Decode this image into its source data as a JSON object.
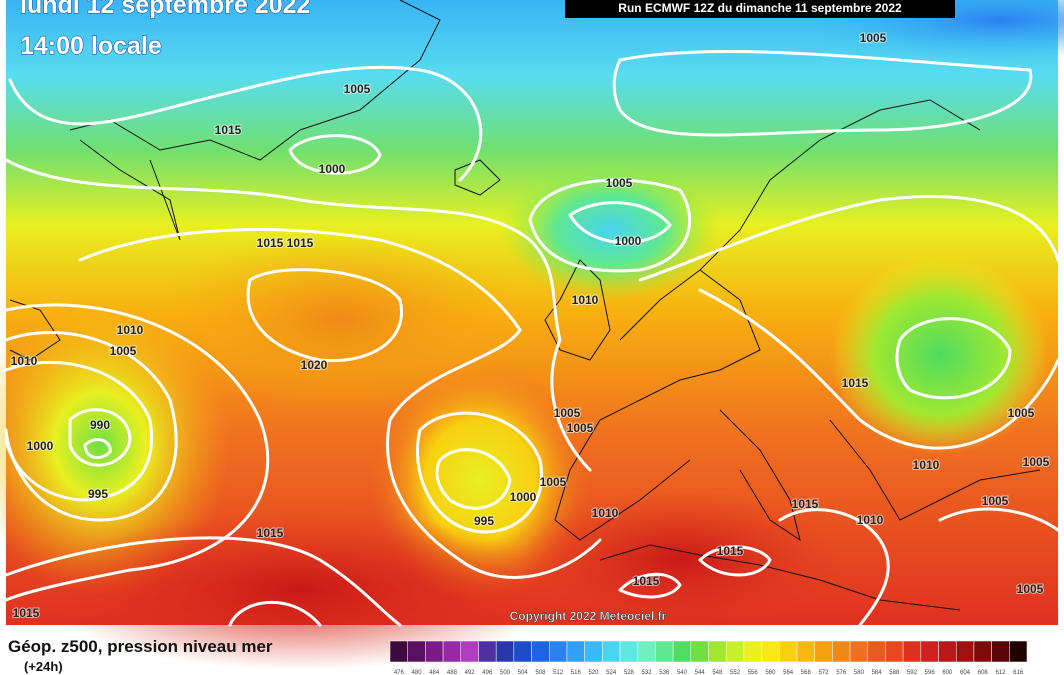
{
  "header": {
    "date": "lundi 12 septembre 2022",
    "time": "14:00 locale",
    "run": "Run ECMWF 12Z du dimanche 11 septembre 2022"
  },
  "copyright": "Copyright 2022 Meteociel.fr",
  "isobar_labels": [
    1005,
    1015,
    1000,
    1005,
    1005,
    1000,
    1015,
    1015,
    1010,
    1010,
    1005,
    1010,
    1020,
    1015,
    990,
    1000,
    995,
    1005,
    1005,
    1005,
    1010,
    1005,
    1005,
    1000,
    1005,
    1010,
    1015,
    995,
    1010,
    1015,
    1015,
    1015,
    1005,
    1015
  ],
  "legend": {
    "title": "Géop. z500, pression niveau mer",
    "subtitle": "(+24h)",
    "colorbar": {
      "labels": [
        476,
        480,
        484,
        488,
        492,
        496,
        500,
        504,
        508,
        512,
        516,
        520,
        524,
        528,
        532,
        536,
        540,
        544,
        548,
        552,
        556,
        560,
        564,
        568,
        572,
        576,
        580,
        584,
        588,
        592,
        596,
        600,
        604,
        608,
        612,
        616
      ],
      "colors": [
        "#3c0a3c",
        "#5a1060",
        "#7a1a86",
        "#9a28a6",
        "#b03cc0",
        "#5030a0",
        "#2838a8",
        "#1c4cc8",
        "#1e64e0",
        "#2a82f0",
        "#30a0f8",
        "#38bcf8",
        "#48d4f0",
        "#5ce8e0",
        "#70f0c0",
        "#60e890",
        "#50dc60",
        "#70e040",
        "#a0e830",
        "#c8f028",
        "#e8f020",
        "#f8e818",
        "#f8d010",
        "#f8b810",
        "#f8a010",
        "#f08818",
        "#f07020",
        "#e85a20",
        "#e84820",
        "#e03020",
        "#d02020",
        "#b81818",
        "#a01010",
        "#800a0a",
        "#5a0505",
        "#200000"
      ]
    }
  }
}
